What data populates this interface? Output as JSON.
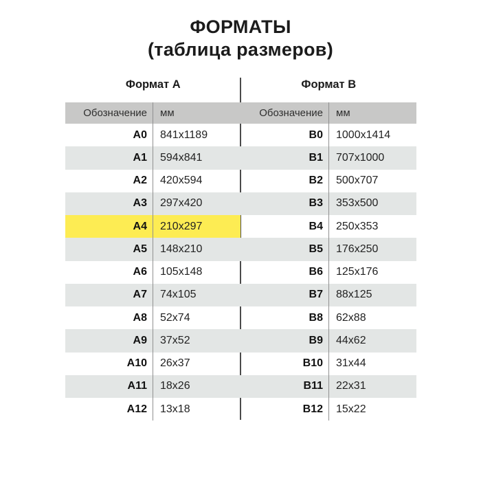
{
  "title_line1": "ФОРМАТЫ",
  "title_line2": "(таблица размеров)",
  "colors": {
    "header_row_bg": "#c8c8c7",
    "stripe_row_bg": "#e3e6e5",
    "highlight_bg": "#fdec53",
    "center_divider": "#4b4b4b",
    "column_rule": "#909090",
    "text": "#1b1b1b",
    "page_bg": "#ffffff"
  },
  "chart_data": {
    "type": "table",
    "title": "ФОРМАТЫ",
    "subtitle": "(таблица размеров)",
    "highlighted_cell": "A4",
    "groups": [
      {
        "header": "Формат А",
        "columns": [
          "Обозначение",
          "мм"
        ],
        "rows": [
          [
            "A0",
            "841x1189"
          ],
          [
            "A1",
            "594x841"
          ],
          [
            "A2",
            "420x594"
          ],
          [
            "A3",
            "297x420"
          ],
          [
            "A4",
            "210x297"
          ],
          [
            "A5",
            "148x210"
          ],
          [
            "A6",
            "105x148"
          ],
          [
            "A7",
            "74x105"
          ],
          [
            "A8",
            "52x74"
          ],
          [
            "A9",
            "37x52"
          ],
          [
            "A10",
            "26x37"
          ],
          [
            "A11",
            "18x26"
          ],
          [
            "A12",
            "13x18"
          ]
        ]
      },
      {
        "header": "Формат В",
        "columns": [
          "Обозначение",
          "мм"
        ],
        "rows": [
          [
            "B0",
            "1000x1414"
          ],
          [
            "B1",
            "707x1000"
          ],
          [
            "B2",
            "500x707"
          ],
          [
            "B3",
            "353x500"
          ],
          [
            "B4",
            "250x353"
          ],
          [
            "B5",
            "176x250"
          ],
          [
            "B6",
            "125x176"
          ],
          [
            "B7",
            "88x125"
          ],
          [
            "B8",
            "62x88"
          ],
          [
            "B9",
            "44x62"
          ],
          [
            "B10",
            "31x44"
          ],
          [
            "B11",
            "22x31"
          ],
          [
            "B12",
            "15x22"
          ]
        ]
      }
    ]
  }
}
